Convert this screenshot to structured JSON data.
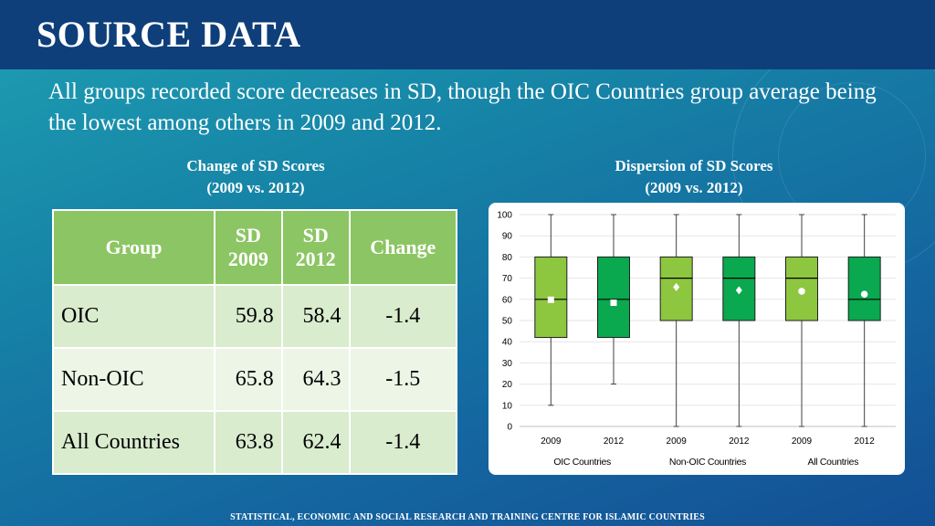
{
  "title": "SOURCE DATA",
  "intro": "All groups recorded score decreases in SD, though the OIC Countries group average being the lowest among others in 2009 and 2012.",
  "left_caption": {
    "line1": "Change of SD Scores",
    "line2": "(2009 vs. 2012)"
  },
  "right_caption": {
    "line1": "Dispersion of SD Scores",
    "line2": "(2009 vs. 2012)"
  },
  "table": {
    "headers": {
      "group": "Group",
      "sd2009_line1": "SD",
      "sd2009_line2": "2009",
      "sd2012_line1": "SD",
      "sd2012_line2": "2012",
      "change": "Change"
    },
    "rows": [
      {
        "group": "OIC",
        "sd2009": "59.8",
        "sd2012": "58.4",
        "change": "-1.4"
      },
      {
        "group": "Non-OIC",
        "sd2009": "65.8",
        "sd2012": "64.3",
        "change": "-1.5"
      },
      {
        "group": "All Countries",
        "sd2009": "63.8",
        "sd2012": "62.4",
        "change": "-1.4"
      }
    ]
  },
  "colors": {
    "box_2009": "#8dc63f",
    "box_2012": "#0aa84f",
    "header_green": "#8cc563"
  },
  "chart_data": {
    "type": "box",
    "ylim": [
      0,
      100
    ],
    "yticks": [
      0,
      10,
      20,
      30,
      40,
      50,
      60,
      70,
      80,
      90,
      100
    ],
    "grid": true,
    "groups": [
      "OIC Countries",
      "Non-OIC Countries",
      "All Countries"
    ],
    "boxes": [
      {
        "label": "2009",
        "group": "OIC Countries",
        "min": 10,
        "q1": 42,
        "median": 60,
        "q3": 80,
        "max": 100,
        "mean": 59.8,
        "marker": "square"
      },
      {
        "label": "2012",
        "group": "OIC Countries",
        "min": 20,
        "q1": 42,
        "median": 60,
        "q3": 80,
        "max": 100,
        "mean": 58.4,
        "marker": "square"
      },
      {
        "label": "2009",
        "group": "Non-OIC Countries",
        "min": 0,
        "q1": 50,
        "median": 70,
        "q3": 80,
        "max": 100,
        "mean": 65.8,
        "marker": "diamond"
      },
      {
        "label": "2012",
        "group": "Non-OIC Countries",
        "min": 0,
        "q1": 50,
        "median": 70,
        "q3": 80,
        "max": 100,
        "mean": 64.3,
        "marker": "diamond"
      },
      {
        "label": "2009",
        "group": "All Countries",
        "min": 0,
        "q1": 50,
        "median": 70,
        "q3": 80,
        "max": 100,
        "mean": 63.8,
        "marker": "circle"
      },
      {
        "label": "2012",
        "group": "All Countries",
        "min": 0,
        "q1": 50,
        "median": 60,
        "q3": 80,
        "max": 100,
        "mean": 62.4,
        "marker": "circle"
      }
    ]
  },
  "footer": "STATISTICAL, ECONOMIC AND SOCIAL RESEARCH AND TRAINING CENTRE FOR ISLAMIC COUNTRIES"
}
